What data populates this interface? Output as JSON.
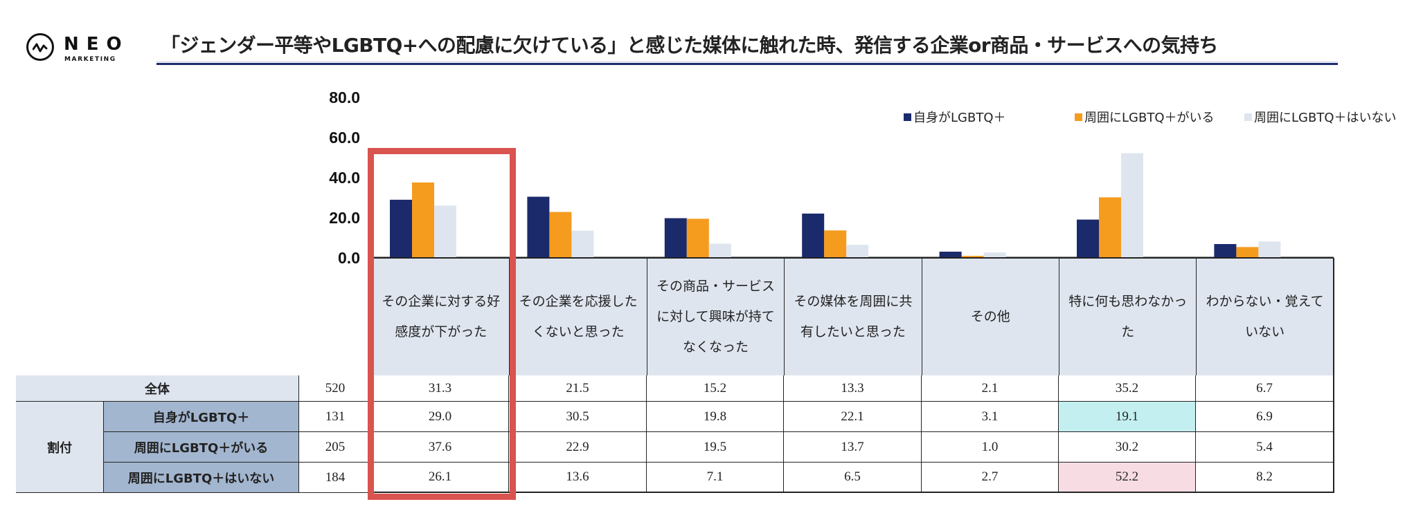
{
  "header": {
    "logo_word": "NEO",
    "logo_sub": "MARKETING",
    "title": "「ジェンダー平等やLGBTQ+への配慮に欠けている」と感じた媒体に触れた時、発信する企業or商品・サービスへの気持ち"
  },
  "colors": {
    "series1": "#1b2a6b",
    "series2": "#f59b1e",
    "series3": "#dfe5ef",
    "highlight_box": "#d9534f",
    "cell_high": "#c4eff0",
    "cell_low": "#f7dce3",
    "label_bg": "#a3b6cf",
    "light_bg": "#dfe5ef"
  },
  "chart_data": {
    "type": "bar",
    "title": "「ジェンダー平等やLGBTQ+への配慮に欠けている」と感じた媒体に触れた時、発信する企業or商品・サービスへの気持ち",
    "ylim": [
      0,
      80
    ],
    "yticks": [
      "0.0",
      "20.0",
      "40.0",
      "60.0",
      "80.0"
    ],
    "ytick_values": [
      0,
      20,
      40,
      60,
      80
    ],
    "legend_position": "top-right",
    "categories": [
      "その企業に対する好感度が下がった",
      "その企業を応援したくないと思った",
      "その商品・サービスに対して興味が持てなくなった",
      "その媒体を周囲に共有したいと思った",
      "その他",
      "特に何も思わなかった",
      "わからない・覚えていない"
    ],
    "series": [
      {
        "name": "自身がLGBTQ＋",
        "values": [
          29.0,
          30.5,
          19.8,
          22.1,
          3.1,
          19.1,
          6.9
        ]
      },
      {
        "name": "周囲にLGBTQ＋がいる",
        "values": [
          37.6,
          22.9,
          19.5,
          13.7,
          1.0,
          30.2,
          5.4
        ]
      },
      {
        "name": "周囲にLGBTQ＋はいない",
        "values": [
          26.1,
          13.6,
          7.1,
          6.5,
          2.7,
          52.2,
          8.2
        ]
      }
    ]
  },
  "table": {
    "headers": [
      [
        "その企業に対する好",
        "感度が下がった"
      ],
      [
        "その企業を応援した",
        "くないと思った"
      ],
      [
        "その商品・サービス",
        "に対して興味が持て",
        "なくなった"
      ],
      [
        "その媒体を周囲に共",
        "有したいと思った"
      ],
      [
        "その他"
      ],
      [
        "特に何も思わなかっ",
        "た"
      ],
      [
        "わからない・覚えて",
        "いない"
      ]
    ],
    "group_label": "割付",
    "rows": [
      {
        "label": "全体",
        "n": "520",
        "values": [
          "31.3",
          "21.5",
          "15.2",
          "13.3",
          "2.1",
          "35.2",
          "6.7"
        ]
      },
      {
        "label": "自身がLGBTQ＋",
        "n": "131",
        "values": [
          "29.0",
          "30.5",
          "19.8",
          "22.1",
          "3.1",
          "19.1",
          "6.9"
        ]
      },
      {
        "label": "周囲にLGBTQ＋がいる",
        "n": "205",
        "values": [
          "37.6",
          "22.9",
          "19.5",
          "13.7",
          "1.0",
          "30.2",
          "5.4"
        ]
      },
      {
        "label": "周囲にLGBTQ＋はいない",
        "n": "184",
        "values": [
          "26.1",
          "13.6",
          "7.1",
          "6.5",
          "2.7",
          "52.2",
          "8.2"
        ]
      }
    ],
    "highlights": [
      {
        "row": 1,
        "col": 5,
        "tone": "high"
      },
      {
        "row": 3,
        "col": 5,
        "tone": "low"
      }
    ]
  }
}
